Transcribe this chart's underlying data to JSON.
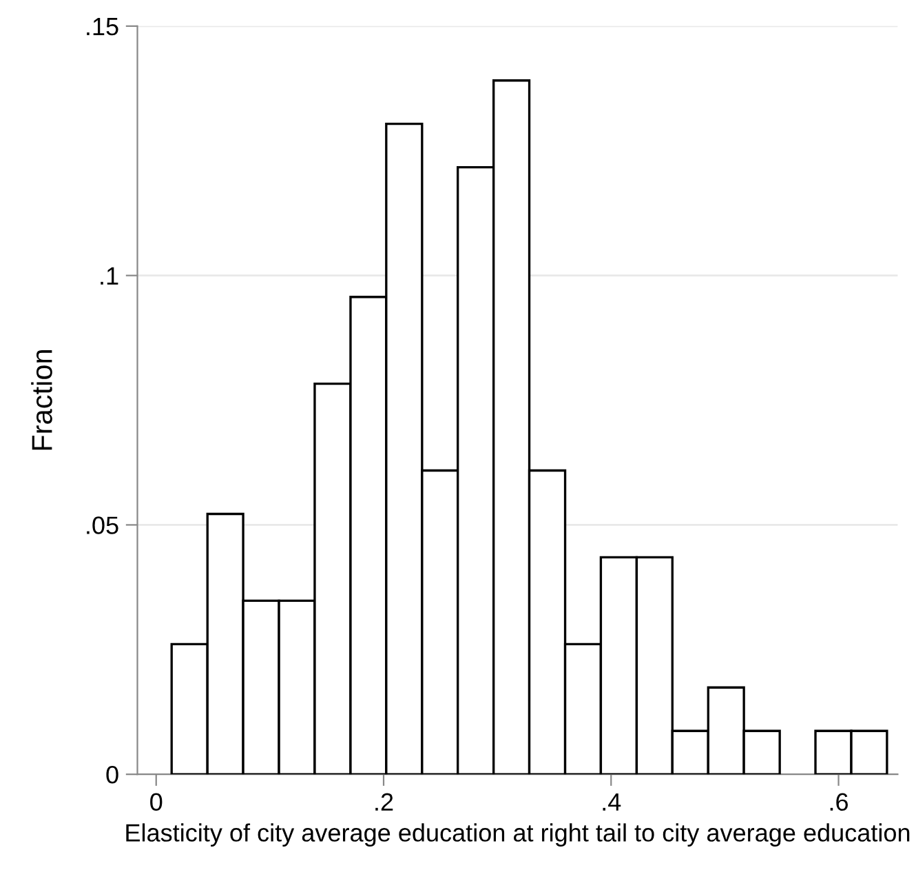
{
  "chart_data": {
    "type": "histogram",
    "xlabel": "Elasticity of city average education at right tail to city average education",
    "ylabel": "Fraction",
    "bins": [
      0.0136,
      0.0451,
      0.0765,
      0.108,
      0.1394,
      0.1709,
      0.2023,
      0.2338,
      0.2652,
      0.2967,
      0.3281,
      0.3596,
      0.391,
      0.4225,
      0.4539,
      0.4854,
      0.5168,
      0.5483,
      0.5797,
      0.6112,
      0.6426
    ],
    "values": [
      0.0261,
      0.0522,
      0.0348,
      0.0348,
      0.0783,
      0.0957,
      0.1304,
      0.0609,
      0.1217,
      0.1391,
      0.0609,
      0.0261,
      0.0435,
      0.0435,
      0.0087,
      0.0174,
      0.0087,
      0,
      0.0087,
      0.0087
    ],
    "color": "#ffffff",
    "xlim": [
      -0.0165,
      0.652
    ],
    "ylim": [
      0,
      0.15
    ],
    "xticks": [
      {
        "value": 0,
        "label": "0"
      },
      {
        "value": 0.2,
        "label": ".2"
      },
      {
        "value": 0.4,
        "label": ".4"
      },
      {
        "value": 0.6,
        "label": ".6"
      }
    ],
    "yticks": [
      {
        "value": 0,
        "label": "0"
      },
      {
        "value": 0.05,
        "label": ".05"
      },
      {
        "value": 0.1,
        "label": ".1"
      },
      {
        "value": 0.15,
        "label": ".15"
      }
    ],
    "grid": "y"
  }
}
